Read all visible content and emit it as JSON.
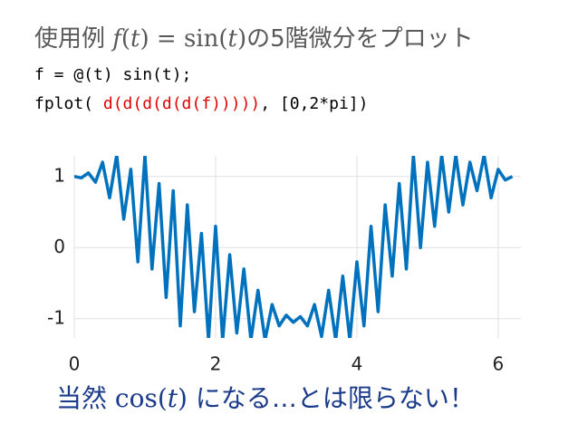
{
  "header": {
    "title": [
      "使用例 ",
      "f",
      "(",
      "t",
      ") = sin(",
      "t",
      ")",
      "の5階微分をプロット"
    ]
  },
  "code": {
    "line1": "f = @(t) sin(t);",
    "line2": [
      "fplot( ",
      "d(d(d(d(d(f)))))",
      ", [0,2*pi])"
    ]
  },
  "chart_data": {
    "type": "line",
    "color": "#0072bd",
    "grid": true,
    "x": [
      0,
      0.1,
      0.2,
      0.3,
      0.4,
      0.5,
      0.6,
      0.7,
      0.8,
      0.9,
      1.0,
      1.1,
      1.2,
      1.3,
      1.4,
      1.5,
      1.6,
      1.7,
      1.8,
      1.9,
      2.0,
      2.1,
      2.2,
      2.3,
      2.4,
      2.5,
      2.6,
      2.7,
      2.8,
      2.9,
      3.0,
      3.1,
      3.2,
      3.3,
      3.4,
      3.5,
      3.6,
      3.7,
      3.8,
      3.9,
      4.0,
      4.1,
      4.2,
      4.3,
      4.4,
      4.5,
      4.6,
      4.7,
      4.8,
      4.9,
      5.0,
      5.1,
      5.2,
      5.3,
      5.4,
      5.5,
      5.6,
      5.7,
      5.8,
      5.9,
      6.0,
      6.1,
      6.2
    ],
    "values": [
      1.0,
      0.98,
      1.05,
      0.92,
      1.2,
      0.7,
      1.3,
      0.4,
      1.1,
      -0.2,
      1.3,
      -0.3,
      0.9,
      -0.7,
      0.8,
      -1.1,
      0.6,
      -0.9,
      0.2,
      -1.3,
      0.3,
      -1.3,
      -0.1,
      -1.2,
      -0.3,
      -1.3,
      -0.6,
      -1.3,
      -0.8,
      -1.1,
      -0.95,
      -1.05,
      -0.97,
      -1.1,
      -0.8,
      -1.25,
      -0.6,
      -1.3,
      -0.4,
      -1.3,
      -0.2,
      -1.1,
      0.3,
      -0.9,
      0.6,
      -0.4,
      0.9,
      -0.3,
      1.3,
      0.0,
      1.2,
      0.3,
      1.3,
      0.5,
      1.3,
      0.6,
      1.2,
      0.8,
      1.3,
      0.7,
      1.1,
      0.95,
      1.0
    ],
    "xlim": [
      0,
      6.2832
    ],
    "ylim": [
      -1.27,
      1.29
    ],
    "xticks": [
      0,
      2,
      4,
      6
    ],
    "yticks": [
      -1,
      0,
      1
    ]
  },
  "caption": [
    "当然 ",
    "cos(",
    "t",
    ")",
    " になる…とは限らない！"
  ]
}
